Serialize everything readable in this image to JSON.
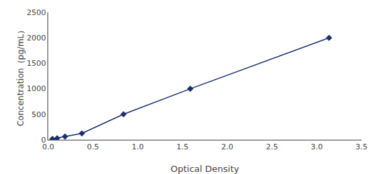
{
  "chart_data": {
    "type": "line",
    "x": [
      0.047,
      0.1,
      0.188,
      0.376,
      0.841,
      1.587,
      3.137
    ],
    "values": [
      15.6,
      31.2,
      62.5,
      125,
      500,
      1000,
      2000
    ],
    "color": "#1a2f6e",
    "marker": "diamond",
    "line_style": "solid",
    "xlabel": "Optical Density",
    "ylabel": "Concentration（pg/mL）",
    "xlim": [
      0,
      3.5
    ],
    "ylim": [
      0,
      2500
    ],
    "xticks": [
      {
        "value": 0,
        "label": "0.0"
      },
      {
        "value": 0.5,
        "label": "0.5"
      },
      {
        "value": 1,
        "label": "1.0"
      },
      {
        "value": 1.5,
        "label": "1.5"
      },
      {
        "value": 2,
        "label": "2.0"
      },
      {
        "value": 2.5,
        "label": "2.5"
      },
      {
        "value": 3,
        "label": "3.0"
      },
      {
        "value": 3.5,
        "label": "3.5"
      }
    ],
    "yticks": [
      0,
      500,
      1000,
      1500,
      2000,
      2500
    ],
    "grid": false
  }
}
